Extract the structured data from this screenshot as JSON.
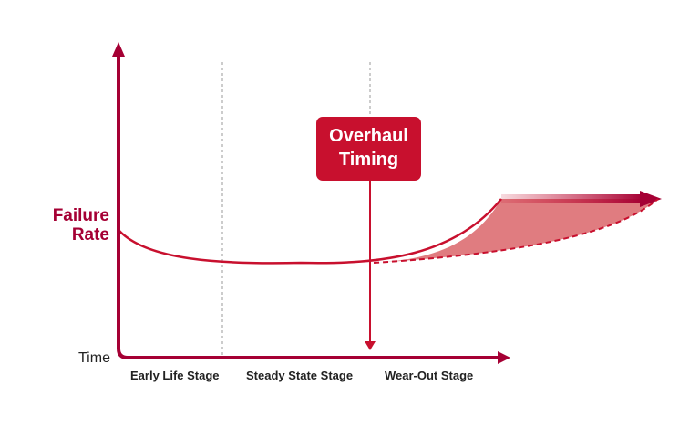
{
  "y_axis_label": [
    "Failure",
    "Rate"
  ],
  "x_axis_label": "Time",
  "stages": [
    "Early Life Stage",
    "Steady State Stage",
    "Wear-Out Stage"
  ],
  "callout": [
    "Overhaul",
    "Timing"
  ],
  "colors": {
    "axis": "#a50034",
    "curve": "#c8102e",
    "callout_bg": "#c8102e",
    "shaded_area": "#e07c80",
    "divider": "#999999"
  }
}
